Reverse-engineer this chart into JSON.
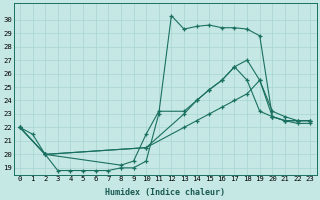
{
  "xlabel": "Humidex (Indice chaleur)",
  "background_color": "#c6e8e4",
  "grid_color": "#a8d4d0",
  "line_color": "#1a7060",
  "x_ticks": [
    0,
    1,
    2,
    3,
    4,
    5,
    6,
    7,
    8,
    9,
    10,
    11,
    12,
    13,
    14,
    15,
    16,
    17,
    18,
    19,
    20,
    21,
    22,
    23
  ],
  "ylim": [
    18.5,
    31.2
  ],
  "xlim": [
    -0.5,
    23.5
  ],
  "y_ticks": [
    19,
    20,
    21,
    22,
    23,
    24,
    25,
    26,
    27,
    28,
    29,
    30
  ],
  "series1_x": [
    0,
    1,
    2,
    3,
    4,
    5,
    6,
    7,
    8,
    9,
    10,
    11,
    12,
    13,
    14,
    15,
    16,
    17,
    18,
    19,
    20,
    21,
    22,
    23
  ],
  "series1_y": [
    22.0,
    21.5,
    20.0,
    18.8,
    18.8,
    18.8,
    18.8,
    18.8,
    19.0,
    19.0,
    19.5,
    23.0,
    30.3,
    29.3,
    29.5,
    29.6,
    29.4,
    29.4,
    29.3,
    28.8,
    22.8,
    22.5,
    22.5,
    22.5
  ],
  "series2_x": [
    0,
    2,
    8,
    9,
    10,
    11,
    13,
    14,
    15,
    16,
    17,
    18,
    19,
    20,
    21,
    22,
    23
  ],
  "series2_y": [
    22.0,
    20.0,
    19.2,
    19.5,
    21.5,
    23.2,
    23.2,
    24.0,
    24.8,
    25.5,
    26.5,
    25.5,
    23.2,
    22.8,
    22.5,
    22.5,
    22.5
  ],
  "series3_x": [
    0,
    2,
    10,
    13,
    14,
    15,
    16,
    17,
    18,
    19,
    20,
    21,
    22,
    23
  ],
  "series3_y": [
    22.0,
    20.0,
    20.5,
    23.0,
    24.0,
    24.8,
    25.5,
    26.5,
    27.0,
    25.5,
    23.2,
    22.8,
    22.5,
    22.5
  ],
  "series4_x": [
    0,
    2,
    10,
    13,
    14,
    15,
    16,
    17,
    18,
    19,
    20,
    21,
    22,
    23
  ],
  "series4_y": [
    22.0,
    20.0,
    20.5,
    22.0,
    22.5,
    23.0,
    23.5,
    24.0,
    24.5,
    25.5,
    22.8,
    22.5,
    22.3,
    22.3
  ]
}
